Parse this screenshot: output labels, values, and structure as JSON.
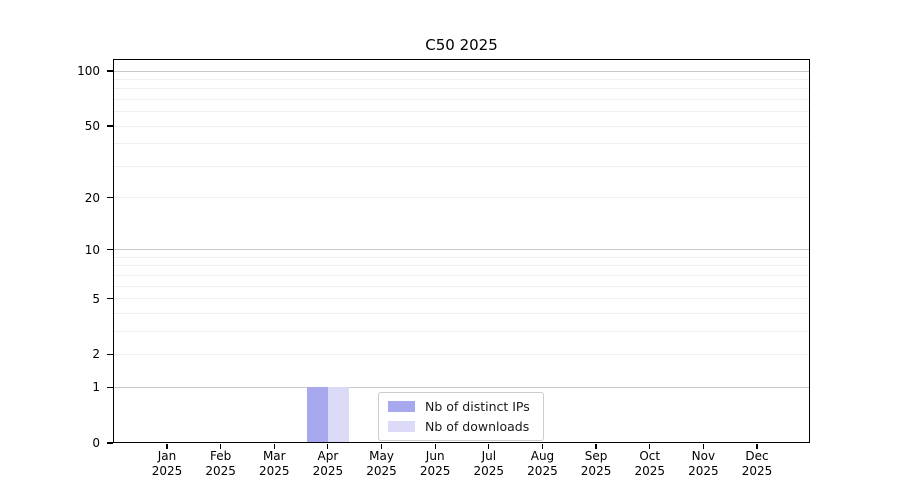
{
  "chart_data": {
    "type": "bar",
    "title": "C50 2025",
    "xlabel": "",
    "ylabel": "",
    "categories": [
      "Jan",
      "Feb",
      "Mar",
      "Apr",
      "May",
      "Jun",
      "Jul",
      "Aug",
      "Sep",
      "Oct",
      "Nov",
      "Dec"
    ],
    "category_year": "2025",
    "series": [
      {
        "name": "Nb of distinct IPs",
        "color": "#a8a8ee",
        "values": [
          0,
          0,
          0,
          1,
          0,
          0,
          0,
          0,
          0,
          0,
          0,
          0
        ]
      },
      {
        "name": "Nb of downloads",
        "color": "#dbdbf8",
        "values": [
          0,
          0,
          0,
          1,
          0,
          0,
          0,
          0,
          0,
          0,
          0,
          0
        ]
      }
    ],
    "yscale": "log1p",
    "ylim": [
      0,
      100
    ],
    "y_tick_labels": [
      0,
      1,
      2,
      5,
      10,
      20,
      50,
      100
    ],
    "y_gridlines_major": [
      1,
      10,
      100
    ],
    "y_gridlines_minor": [
      2,
      3,
      4,
      5,
      6,
      7,
      8,
      9,
      20,
      30,
      40,
      50,
      60,
      70,
      80,
      90
    ],
    "grid": true,
    "legend_position": "lower center",
    "legend_labels": [
      "Nb of distinct IPs",
      "Nb of downloads"
    ]
  },
  "colors": {
    "background": "#ffffff",
    "axis": "#000000",
    "grid_major": "#c9c9c9",
    "grid_minor": "#efefef",
    "legend_border": "#cccccc",
    "bar_distinct_ips": "#a8a8ee",
    "bar_downloads": "#dbdbf8"
  }
}
